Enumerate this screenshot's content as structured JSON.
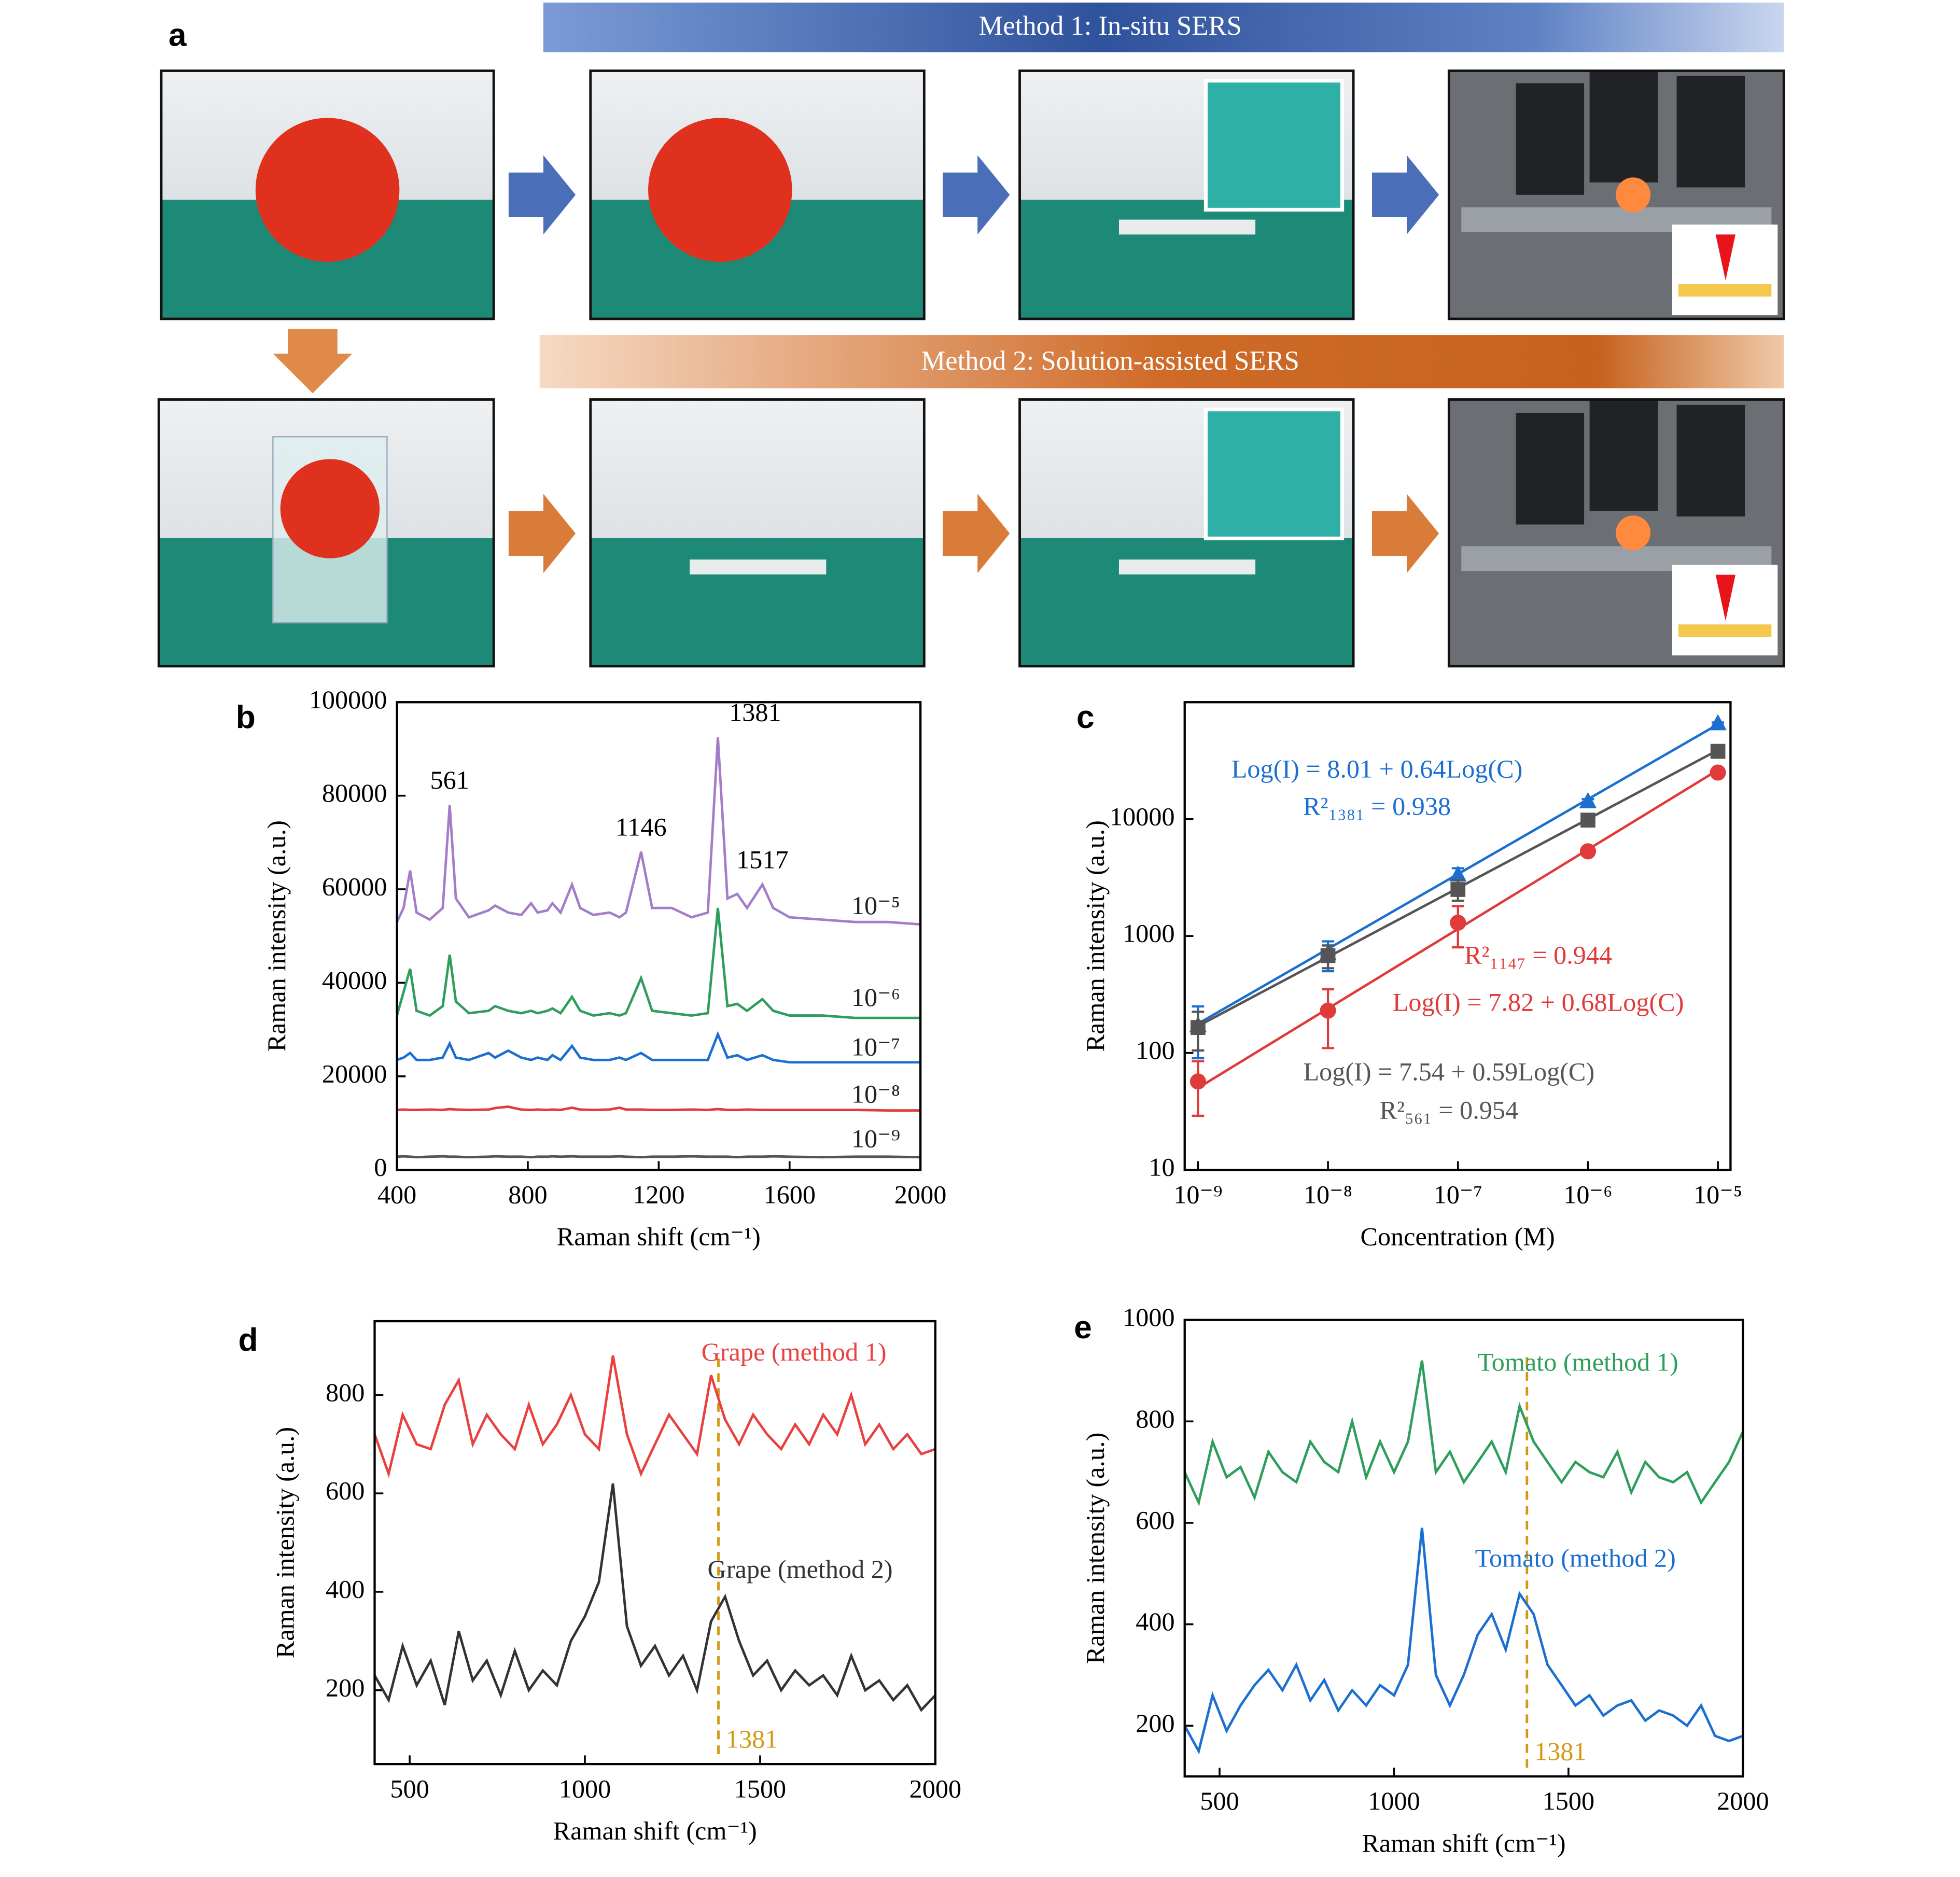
{
  "panel_a": {
    "label": "a",
    "method1": "Method 1: In-situ SERS",
    "method2": "Method 2: Solution-assisted SERS"
  },
  "chart_data": [
    {
      "type": "line",
      "label": "b",
      "xlabel": "Raman shift (cm⁻¹)",
      "ylabel": "Raman intensity (a.u.)",
      "x": [
        400,
        420,
        440,
        460,
        500,
        540,
        561,
        580,
        620,
        680,
        700,
        740,
        780,
        810,
        830,
        860,
        875,
        900,
        935,
        960,
        1000,
        1050,
        1080,
        1100,
        1146,
        1180,
        1240,
        1300,
        1350,
        1381,
        1410,
        1440,
        1470,
        1517,
        1550,
        1600,
        1700,
        1800,
        1900,
        2000
      ],
      "series": [
        {
          "name": "10⁻⁵",
          "color": "#a57cc9",
          "values": [
            53000,
            56000,
            64000,
            55000,
            53500,
            56000,
            78000,
            58000,
            54000,
            55500,
            56500,
            55000,
            54500,
            57000,
            55000,
            55500,
            57000,
            55000,
            61000,
            56000,
            54500,
            55000,
            54000,
            55000,
            68000,
            56000,
            56000,
            54000,
            55000,
            92500,
            58000,
            59000,
            56000,
            61000,
            56000,
            54000,
            53500,
            53000,
            53000,
            52500
          ]
        },
        {
          "name": "10⁻⁶",
          "color": "#2f9e5c",
          "values": [
            33000,
            38000,
            43000,
            34000,
            33000,
            35000,
            46000,
            36000,
            33500,
            34000,
            35000,
            34000,
            33500,
            34000,
            33500,
            34000,
            34500,
            33500,
            37000,
            34000,
            33000,
            33500,
            33000,
            33500,
            41000,
            34000,
            33500,
            33000,
            33500,
            56000,
            35000,
            35500,
            34000,
            36500,
            34000,
            33000,
            33000,
            32500,
            32500,
            32500
          ]
        },
        {
          "name": "10⁻⁷",
          "color": "#1c6fd0",
          "values": [
            23500,
            24000,
            25000,
            23500,
            23500,
            24000,
            27000,
            24000,
            23500,
            25000,
            24000,
            25500,
            24000,
            23500,
            24000,
            23500,
            24500,
            23500,
            26500,
            24000,
            23500,
            23500,
            24000,
            23500,
            25000,
            23500,
            23500,
            23500,
            23500,
            29000,
            24000,
            24500,
            23500,
            24500,
            23500,
            23000,
            23000,
            23000,
            23000,
            23000
          ]
        },
        {
          "name": "10⁻⁸",
          "color": "#e03a3a",
          "values": [
            12800,
            12900,
            12800,
            12800,
            12900,
            12800,
            13000,
            12900,
            12800,
            12900,
            13200,
            13500,
            12900,
            12800,
            12900,
            12800,
            12900,
            12800,
            13300,
            12900,
            12800,
            12900,
            13300,
            12900,
            12900,
            12800,
            12800,
            12900,
            12800,
            13000,
            12800,
            12800,
            12900,
            12800,
            12800,
            12800,
            12800,
            12800,
            12700,
            12700
          ]
        },
        {
          "name": "10⁻⁹",
          "color": "#555555",
          "values": [
            2800,
            2900,
            2800,
            2700,
            2800,
            2900,
            2800,
            2800,
            2700,
            2800,
            2900,
            2800,
            2800,
            2700,
            2800,
            2800,
            2900,
            2800,
            2900,
            2800,
            2800,
            2800,
            2900,
            2800,
            2700,
            2800,
            2800,
            2900,
            2800,
            2800,
            2800,
            2700,
            2800,
            2800,
            2900,
            2800,
            2700,
            2800,
            2800,
            2700
          ]
        }
      ],
      "peak_labels": [
        561,
        1146,
        1381,
        1517
      ],
      "xlim": [
        400,
        2000
      ],
      "xticks": [
        400,
        800,
        1200,
        1600,
        2000
      ],
      "ylim": [
        0,
        100000
      ],
      "yticks": [
        0,
        20000,
        40000,
        60000,
        80000,
        100000
      ]
    },
    {
      "type": "scatter",
      "label": "c",
      "xlabel": "Concentration (M)",
      "ylabel": "Raman intensity (a.u.)",
      "xlog": true,
      "ylog": true,
      "x": [
        1e-09,
        1e-08,
        1e-07,
        1e-06,
        1e-05
      ],
      "series": [
        {
          "color": "#1c6fd0",
          "marker": "triangle",
          "values": [
            170,
            700,
            3300,
            14000,
            65000
          ],
          "errors": [
            80,
            200,
            500,
            800,
            2000
          ],
          "fit": [
            8.01,
            0.64
          ],
          "equation": "Log(I) = 8.01 + 0.64Log(C)",
          "r_squared": "R²₁₃₈₁ = 0.938"
        },
        {
          "color": "#555555",
          "marker": "square",
          "values": [
            165,
            680,
            2500,
            9800,
            38000
          ],
          "errors": [
            60,
            150,
            500,
            500,
            1500
          ],
          "fit": [
            7.54,
            0.59
          ],
          "equation": "Log(I) = 7.54 + 0.59Log(C)",
          "r_squared": "R²₅₆₁ = 0.954"
        },
        {
          "color": "#e03a3a",
          "marker": "circle",
          "values": [
            57,
            230,
            1300,
            5300,
            25000
          ],
          "errors": [
            28,
            120,
            500,
            300,
            2000
          ],
          "fit": [
            7.82,
            0.68
          ],
          "equation": "Log(I) = 7.82 + 0.68Log(C)",
          "r_squared": "R²₁₁₄₇ = 0.944"
        }
      ],
      "xlim": [
        7.9e-10,
        1.25e-05
      ],
      "xticks": [
        {
          "value": 1e-09,
          "label": "10⁻⁹"
        },
        {
          "value": 1e-08,
          "label": "10⁻⁸"
        },
        {
          "value": 1e-07,
          "label": "10⁻⁷"
        },
        {
          "value": 1e-06,
          "label": "10⁻⁶"
        },
        {
          "value": 1e-05,
          "label": "10⁻⁵"
        }
      ],
      "ylim": [
        10,
        100000
      ],
      "yticks": [
        10,
        100,
        1000,
        10000
      ]
    },
    {
      "type": "line",
      "label": "d",
      "xlabel": "Raman shift (cm⁻¹)",
      "ylabel": "Raman intensity (a.u.)",
      "x": [
        400,
        440,
        480,
        520,
        560,
        600,
        640,
        680,
        720,
        760,
        800,
        840,
        880,
        920,
        960,
        1000,
        1040,
        1080,
        1120,
        1160,
        1200,
        1240,
        1280,
        1320,
        1360,
        1400,
        1440,
        1480,
        1520,
        1560,
        1600,
        1640,
        1680,
        1720,
        1760,
        1800,
        1840,
        1880,
        1920,
        1960,
        2000
      ],
      "series": [
        {
          "name": "Grape (method 1)",
          "color": "#e8413f",
          "values": [
            720,
            640,
            760,
            700,
            690,
            780,
            830,
            700,
            760,
            720,
            690,
            780,
            700,
            740,
            800,
            720,
            690,
            880,
            720,
            640,
            700,
            760,
            720,
            680,
            840,
            750,
            700,
            760,
            720,
            690,
            740,
            700,
            760,
            720,
            800,
            700,
            740,
            690,
            720,
            680,
            690
          ]
        },
        {
          "name": "Grape (method 2)",
          "color": "#333333",
          "values": [
            230,
            180,
            290,
            210,
            260,
            170,
            320,
            220,
            260,
            190,
            280,
            200,
            240,
            210,
            300,
            350,
            420,
            620,
            330,
            250,
            290,
            230,
            270,
            200,
            340,
            390,
            300,
            230,
            260,
            200,
            240,
            210,
            230,
            190,
            270,
            200,
            220,
            180,
            210,
            160,
            190
          ]
        }
      ],
      "marker_line": 1381,
      "marker_color": "#d19a12",
      "xlim": [
        400,
        2000
      ],
      "xticks": [
        500,
        1000,
        1500,
        2000
      ],
      "ylim": [
        50,
        950
      ],
      "yticks": [
        200,
        400,
        600,
        800
      ]
    },
    {
      "type": "line",
      "label": "e",
      "xlabel": "Raman shift (cm⁻¹)",
      "ylabel": "Raman intensity (a.u.)",
      "x": [
        400,
        440,
        480,
        520,
        560,
        600,
        640,
        680,
        720,
        760,
        800,
        840,
        880,
        920,
        960,
        1000,
        1040,
        1080,
        1120,
        1160,
        1200,
        1240,
        1280,
        1320,
        1360,
        1400,
        1440,
        1480,
        1520,
        1560,
        1600,
        1640,
        1680,
        1720,
        1760,
        1800,
        1840,
        1880,
        1920,
        1960,
        2000
      ],
      "series": [
        {
          "name": "Tomato (method 1)",
          "color": "#2f9e5c",
          "values": [
            700,
            640,
            760,
            690,
            710,
            650,
            740,
            700,
            680,
            760,
            720,
            700,
            800,
            690,
            760,
            700,
            760,
            920,
            700,
            740,
            680,
            720,
            760,
            700,
            830,
            760,
            720,
            680,
            720,
            700,
            690,
            740,
            660,
            720,
            690,
            680,
            700,
            640,
            680,
            720,
            780
          ]
        },
        {
          "name": "Tomato (method 2)",
          "color": "#1c6fd0",
          "values": [
            200,
            150,
            260,
            190,
            240,
            280,
            310,
            270,
            320,
            250,
            290,
            230,
            270,
            240,
            280,
            260,
            320,
            590,
            300,
            240,
            300,
            380,
            420,
            350,
            460,
            420,
            320,
            280,
            240,
            260,
            220,
            240,
            250,
            210,
            230,
            220,
            200,
            240,
            180,
            170,
            180
          ]
        }
      ],
      "marker_line": 1381,
      "marker_color": "#d19a12",
      "xlim": [
        400,
        2000
      ],
      "xticks": [
        500,
        1000,
        1500,
        2000
      ],
      "ylim": [
        100,
        1000
      ],
      "yticks": [
        200,
        400,
        600,
        800,
        1000
      ]
    }
  ]
}
